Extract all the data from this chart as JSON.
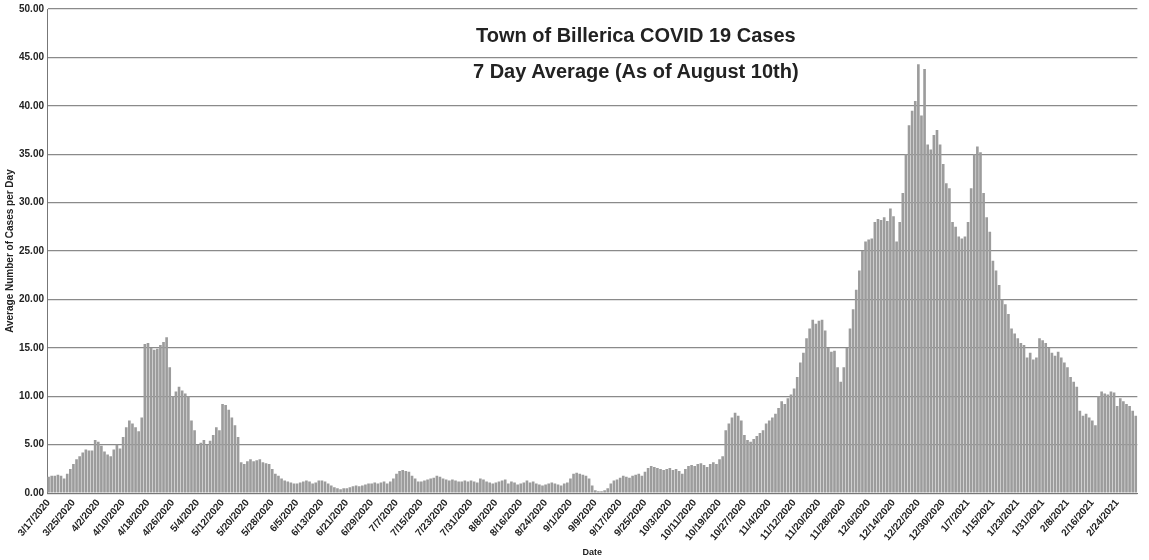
{
  "chart_data": {
    "type": "bar",
    "title": "Town of Billerica COVID 19 Cases",
    "subtitle": "7 Day Average (As of August 10th)",
    "xlabel": "Date",
    "ylabel": "Average Number of Cases per Day",
    "categories": [
      "3/17/2020",
      null,
      null,
      null,
      null,
      null,
      null,
      null,
      "3/25/2020",
      null,
      null,
      null,
      null,
      null,
      null,
      null,
      "4/2/2020",
      null,
      null,
      null,
      null,
      null,
      null,
      null,
      "4/10/2020",
      null,
      null,
      null,
      null,
      null,
      null,
      null,
      "4/18/2020",
      null,
      null,
      null,
      null,
      null,
      null,
      null,
      "4/26/2020",
      null,
      null,
      null,
      null,
      null,
      null,
      null,
      "5/4/2020",
      null,
      null,
      null,
      null,
      null,
      null,
      null,
      "5/12/2020",
      null,
      null,
      null,
      null,
      null,
      null,
      null,
      "5/20/2020",
      null,
      null,
      null,
      null,
      null,
      null,
      null,
      "5/28/2020",
      null,
      null,
      null,
      null,
      null,
      null,
      null,
      "6/5/2020",
      null,
      null,
      null,
      null,
      null,
      null,
      null,
      "6/13/2020",
      null,
      null,
      null,
      null,
      null,
      null,
      null,
      "6/21/2020",
      null,
      null,
      null,
      null,
      null,
      null,
      null,
      "6/29/2020",
      null,
      null,
      null,
      null,
      null,
      null,
      null,
      "7/7/2020",
      null,
      null,
      null,
      null,
      null,
      null,
      null,
      "7/15/2020",
      null,
      null,
      null,
      null,
      null,
      null,
      null,
      "7/23/2020",
      null,
      null,
      null,
      null,
      null,
      null,
      null,
      "7/31/2020",
      null,
      null,
      null,
      null,
      null,
      null,
      null,
      "8/8/2020",
      null,
      null,
      null,
      null,
      null,
      null,
      null,
      "8/16/2020",
      null,
      null,
      null,
      null,
      null,
      null,
      null,
      "8/24/2020",
      null,
      null,
      null,
      null,
      null,
      null,
      null,
      "9/1/2020",
      null,
      null,
      null,
      null,
      null,
      null,
      null,
      "9/9/2020",
      null,
      null,
      null,
      null,
      null,
      null,
      null,
      "9/17/2020",
      null,
      null,
      null,
      null,
      null,
      null,
      null,
      "9/25/2020",
      null,
      null,
      null,
      null,
      null,
      null,
      null,
      "10/3/2020",
      null,
      null,
      null,
      null,
      null,
      null,
      null,
      "10/11/2020",
      null,
      null,
      null,
      null,
      null,
      null,
      null,
      "10/19/2020",
      null,
      null,
      null,
      null,
      null,
      null,
      null,
      "10/27/2020",
      null,
      null,
      null,
      null,
      null,
      null,
      null,
      "11/4/2020",
      null,
      null,
      null,
      null,
      null,
      null,
      null,
      "11/12/2020",
      null,
      null,
      null,
      null,
      null,
      null,
      null,
      "11/20/2020",
      null,
      null,
      null,
      null,
      null,
      null,
      null,
      "11/28/2020",
      null,
      null,
      null,
      null,
      null,
      null,
      null,
      "12/6/2020",
      null,
      null,
      null,
      null,
      null,
      null,
      null,
      "12/14/2020",
      null,
      null,
      null,
      null,
      null,
      null,
      null,
      "12/22/2020",
      null,
      null,
      null,
      null,
      null,
      null,
      null,
      "12/30/2020",
      null,
      null,
      null,
      null,
      null,
      null,
      null,
      "1/7/2021",
      null,
      null,
      null,
      null,
      null,
      null,
      null,
      "1/15/2021",
      null,
      null,
      null,
      null,
      null,
      null,
      null,
      "1/23/2021",
      null,
      null,
      null,
      null,
      null,
      null,
      null,
      "1/31/2021",
      null,
      null,
      null,
      null,
      null,
      null,
      null,
      "2/8/2021",
      null,
      null,
      null,
      null,
      null,
      null,
      null,
      "2/16/2021",
      null,
      null,
      null,
      null,
      null,
      null,
      null,
      "2/24/2021",
      null,
      null,
      null,
      null,
      null,
      null
    ],
    "values": [
      1.7,
      1.8,
      1.8,
      1.9,
      1.8,
      1.5,
      2.0,
      2.5,
      3.0,
      3.5,
      3.8,
      4.2,
      4.5,
      4.4,
      4.4,
      5.5,
      5.3,
      4.9,
      4.3,
      4.0,
      3.8,
      4.5,
      5.0,
      4.6,
      5.8,
      6.8,
      7.5,
      7.2,
      6.8,
      6.4,
      7.8,
      15.4,
      15.5,
      15.0,
      14.8,
      14.9,
      15.3,
      15.6,
      16.1,
      13.0,
      10.0,
      10.5,
      11.0,
      10.6,
      10.3,
      10.0,
      7.5,
      6.5,
      5.0,
      5.2,
      5.5,
      5.0,
      5.4,
      6.0,
      6.8,
      6.5,
      9.2,
      9.1,
      8.6,
      7.8,
      7.0,
      5.8,
      3.2,
      3.0,
      3.3,
      3.5,
      3.3,
      3.4,
      3.5,
      3.2,
      3.1,
      3.0,
      2.5,
      2.0,
      1.8,
      1.5,
      1.3,
      1.2,
      1.1,
      1.0,
      1.0,
      1.1,
      1.2,
      1.3,
      1.2,
      1.0,
      1.1,
      1.3,
      1.3,
      1.2,
      1.0,
      0.8,
      0.6,
      0.5,
      0.4,
      0.5,
      0.5,
      0.6,
      0.7,
      0.8,
      0.7,
      0.8,
      0.9,
      1.0,
      1.0,
      1.1,
      1.0,
      1.1,
      1.2,
      1.0,
      1.2,
      1.5,
      2.0,
      2.3,
      2.4,
      2.3,
      2.2,
      1.8,
      1.5,
      1.2,
      1.2,
      1.3,
      1.4,
      1.5,
      1.6,
      1.8,
      1.7,
      1.5,
      1.4,
      1.3,
      1.4,
      1.3,
      1.2,
      1.2,
      1.3,
      1.2,
      1.3,
      1.2,
      1.1,
      1.5,
      1.4,
      1.2,
      1.1,
      1.0,
      1.1,
      1.2,
      1.3,
      1.4,
      1.0,
      1.2,
      1.1,
      0.9,
      1.0,
      1.1,
      1.3,
      1.1,
      1.2,
      1.0,
      0.9,
      0.8,
      0.9,
      1.0,
      1.1,
      1.0,
      0.9,
      0.8,
      1.0,
      1.1,
      1.5,
      2.0,
      2.1,
      2.0,
      1.9,
      1.8,
      1.5,
      0.8,
      0.3,
      0.2,
      0.2,
      0.3,
      0.5,
      1.0,
      1.3,
      1.4,
      1.6,
      1.8,
      1.7,
      1.6,
      1.8,
      1.9,
      2.0,
      1.8,
      2.2,
      2.6,
      2.8,
      2.7,
      2.6,
      2.5,
      2.4,
      2.5,
      2.6,
      2.4,
      2.5,
      2.3,
      2.0,
      2.5,
      2.8,
      2.9,
      2.8,
      3.0,
      3.1,
      2.9,
      2.7,
      3.0,
      3.2,
      3.0,
      3.5,
      3.8,
      6.5,
      7.2,
      7.8,
      8.3,
      8.0,
      7.5,
      6.0,
      5.5,
      5.3,
      5.6,
      5.9,
      6.2,
      6.5,
      7.2,
      7.5,
      7.8,
      8.2,
      8.8,
      9.5,
      9.2,
      9.8,
      10.2,
      10.8,
      12.0,
      13.5,
      14.5,
      16.0,
      17.0,
      17.9,
      17.5,
      17.8,
      17.9,
      16.8,
      15.0,
      14.6,
      14.7,
      13.0,
      11.5,
      13.0,
      15.0,
      17.0,
      19.0,
      21.0,
      23.0,
      25.0,
      26.0,
      26.2,
      26.3,
      28.0,
      28.3,
      28.2,
      28.5,
      28.1,
      29.4,
      28.6,
      26.0,
      28.0,
      31.0,
      35.0,
      38.0,
      39.5,
      40.5,
      44.3,
      39.0,
      43.8,
      36.0,
      35.5,
      37.0,
      37.5,
      36.0,
      34.0,
      32.0,
      31.5,
      28.0,
      27.5,
      26.5,
      26.3,
      26.5,
      28.0,
      31.5,
      35.0,
      35.8,
      35.2,
      31.0,
      28.5,
      27.0,
      24.0,
      23.0,
      21.5,
      20.0,
      19.5,
      18.5,
      17.0,
      16.5,
      16.0,
      15.5,
      15.3,
      14.0,
      14.5,
      13.8,
      14.0,
      16.0,
      15.8,
      15.5,
      15.0,
      14.5,
      14.2,
      14.6,
      14.0,
      13.5,
      13.0,
      12.0,
      11.5,
      11.0,
      8.5,
      8.0,
      8.2,
      7.8,
      7.5,
      7.0,
      10.0,
      10.5,
      10.3,
      10.2,
      10.5,
      10.4,
      9.0,
      9.8,
      9.5,
      9.2,
      9.0,
      8.5,
      8.0
    ],
    "color": "#9c9c9c",
    "ylim": [
      0,
      50
    ],
    "yticks": [
      {
        "value": 0,
        "label": "0.00"
      },
      {
        "value": 5,
        "label": "5.00"
      },
      {
        "value": 10,
        "label": "10.00"
      },
      {
        "value": 15,
        "label": "15.00"
      },
      {
        "value": 20,
        "label": "20.00"
      },
      {
        "value": 25,
        "label": "25.00"
      },
      {
        "value": 30,
        "label": "30.00"
      },
      {
        "value": 35,
        "label": "35.00"
      },
      {
        "value": 40,
        "label": "40.00"
      },
      {
        "value": 45,
        "label": "45.00"
      },
      {
        "value": 50,
        "label": "50.00"
      }
    ],
    "grid": "y",
    "legend": false
  }
}
